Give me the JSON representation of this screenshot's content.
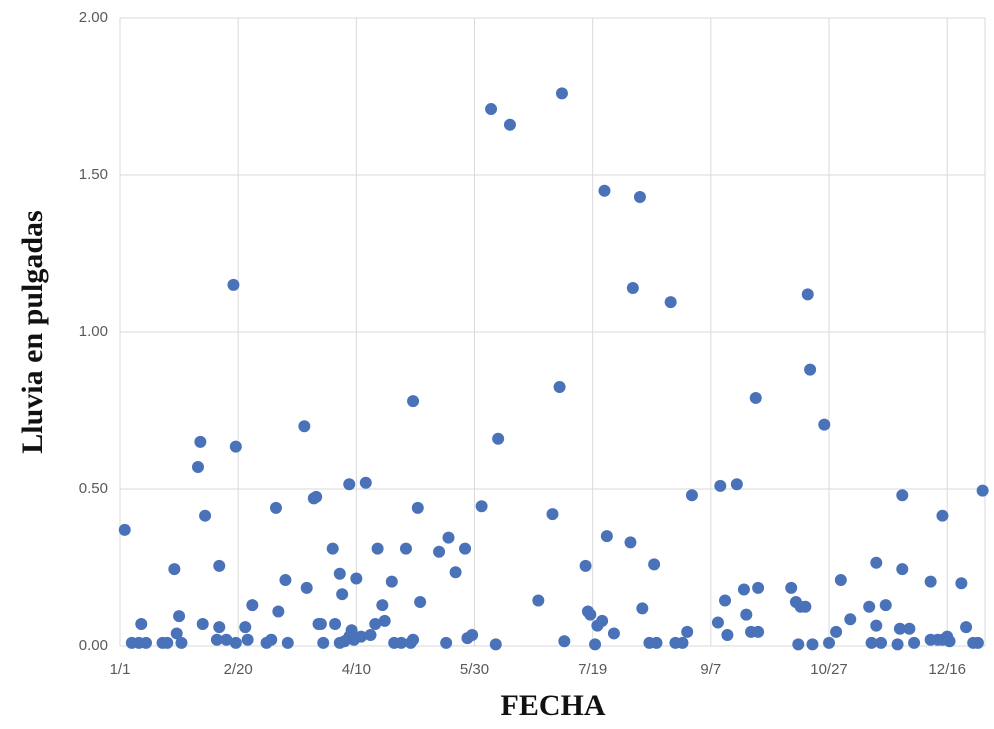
{
  "chart_data": {
    "type": "scatter",
    "x_label": "FECHA",
    "y_label": "Lluvia en pulgadas",
    "color": "#4a72b8",
    "grid": true,
    "xlim": [
      0,
      366
    ],
    "xticks": [
      {
        "value": 0,
        "label": "1/1"
      },
      {
        "value": 50,
        "label": "2/20"
      },
      {
        "value": 100,
        "label": "4/10"
      },
      {
        "value": 150,
        "label": "5/30"
      },
      {
        "value": 200,
        "label": "7/19"
      },
      {
        "value": 250,
        "label": "9/7"
      },
      {
        "value": 300,
        "label": "10/27"
      },
      {
        "value": 350,
        "label": "12/16"
      }
    ],
    "ylim": [
      0,
      2
    ],
    "yticks": [
      {
        "value": 0,
        "label": "0.00"
      },
      {
        "value": 0.5,
        "label": "0.50"
      },
      {
        "value": 1,
        "label": "1.00"
      },
      {
        "value": 1.5,
        "label": "1.50"
      },
      {
        "value": 2,
        "label": "2.00"
      }
    ],
    "x": [
      2,
      5,
      8,
      11,
      9,
      18,
      20,
      23,
      24,
      25,
      26,
      34,
      33,
      35,
      36,
      41,
      42,
      42,
      45,
      48,
      49,
      49,
      53,
      54,
      56,
      62,
      64,
      66,
      67,
      70,
      71,
      78,
      79,
      82,
      83,
      84,
      85,
      86,
      90,
      91,
      93,
      93,
      94,
      95,
      97,
      97,
      98,
      100,
      99,
      102,
      104,
      106,
      108,
      109,
      111,
      112,
      115,
      116,
      119,
      121,
      123,
      124,
      124,
      126,
      127,
      135,
      138,
      139,
      142,
      146,
      147,
      149,
      153,
      157,
      159,
      160,
      165,
      177,
      183,
      186,
      187,
      188,
      197,
      198,
      199,
      201,
      202,
      204,
      205,
      206,
      209,
      216,
      217,
      220,
      221,
      224,
      227,
      226,
      233,
      235,
      238,
      240,
      242,
      253,
      254,
      256,
      257,
      261,
      264,
      265,
      267,
      270,
      269,
      270,
      284,
      286,
      287,
      288,
      290,
      291,
      292,
      293,
      298,
      300,
      303,
      305,
      309,
      317,
      318,
      320,
      320,
      322,
      324,
      329,
      331,
      331,
      330,
      334,
      336,
      343,
      343,
      346,
      348,
      348,
      350,
      351,
      356,
      358,
      361,
      363,
      365
    ],
    "values": [
      0.37,
      0.01,
      0.01,
      0.01,
      0.07,
      0.01,
      0.01,
      0.245,
      0.04,
      0.095,
      0.01,
      0.65,
      0.57,
      0.07,
      0.415,
      0.02,
      0.06,
      0.255,
      0.02,
      1.15,
      0.635,
      0.01,
      0.06,
      0.02,
      0.13,
      0.01,
      0.02,
      0.44,
      0.11,
      0.21,
      0.01,
      0.7,
      0.185,
      0.47,
      0.475,
      0.07,
      0.07,
      0.01,
      0.31,
      0.07,
      0.01,
      0.23,
      0.165,
      0.015,
      0.515,
      0.03,
      0.05,
      0.215,
      0.02,
      0.03,
      0.52,
      0.035,
      0.07,
      0.31,
      0.13,
      0.08,
      0.205,
      0.01,
      0.01,
      0.31,
      0.01,
      0.02,
      0.78,
      0.44,
      0.14,
      0.3,
      0.01,
      0.345,
      0.235,
      0.31,
      0.025,
      0.035,
      0.445,
      1.71,
      0.005,
      0.66,
      1.66,
      0.145,
      0.42,
      0.825,
      1.76,
      0.015,
      0.255,
      0.11,
      0.1,
      0.005,
      0.065,
      0.08,
      1.45,
      0.35,
      0.04,
      0.33,
      1.14,
      1.43,
      0.12,
      0.01,
      0.01,
      0.26,
      1.095,
      0.01,
      0.01,
      0.045,
      0.48,
      0.075,
      0.51,
      0.145,
      0.035,
      0.515,
      0.18,
      0.1,
      0.045,
      0.045,
      0.79,
      0.185,
      0.185,
      0.14,
      0.005,
      0.125,
      0.125,
      1.12,
      0.88,
      0.005,
      0.705,
      0.01,
      0.045,
      0.21,
      0.085,
      0.125,
      0.01,
      0.065,
      0.265,
      0.01,
      0.13,
      0.005,
      0.48,
      0.245,
      0.055,
      0.055,
      0.01,
      0.205,
      0.02,
      0.02,
      0.02,
      0.415,
      0.03,
      0.015,
      0.2,
      0.06,
      0.01,
      0.01,
      0.495
    ]
  }
}
